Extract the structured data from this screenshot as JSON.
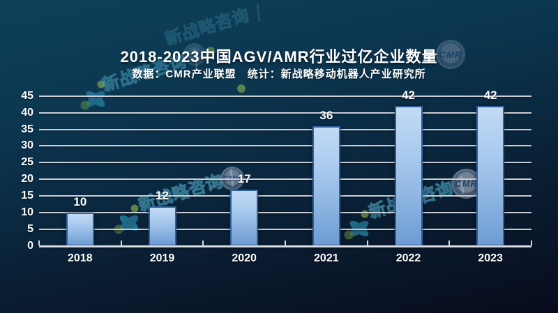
{
  "header": {
    "title": "2018-2023中国AGV/AMR行业过亿企业数量",
    "subtitle": "数据：CMR产业联盟　统计：新战略移动机器人产业研究所"
  },
  "chart_data": {
    "type": "bar",
    "title": "2018-2023中国AGV/AMR行业过亿企业数量",
    "subtitle": "数据：CMR产业联盟　统计：新战略移动机器人产业研究所",
    "categories": [
      "2018",
      "2019",
      "2020",
      "2021",
      "2022",
      "2023"
    ],
    "values": [
      10,
      12,
      17,
      36,
      42,
      42
    ],
    "xlabel": "",
    "ylabel": "",
    "ylim": [
      0,
      45
    ],
    "yticks": [
      0,
      5,
      10,
      15,
      20,
      25,
      30,
      35,
      40,
      45
    ],
    "grid": true,
    "legend": "none",
    "colors": {
      "background_top": "#0e4158",
      "background_bottom": "#080c1d",
      "gridline": "#c9ced6",
      "axis": "#d9dce1",
      "bar_top": "#c2daf4",
      "bar_bottom": "#6d9bd3",
      "bar_border": "#30619b",
      "label_text": "#ffffff",
      "watermark_teal": "#2ba2c4",
      "watermark_green": "#a8cf4b",
      "badge_blue": "#2b5ea7"
    }
  },
  "watermarks": {
    "brand_text": "新战略咨询",
    "badge_text": "CMR"
  }
}
